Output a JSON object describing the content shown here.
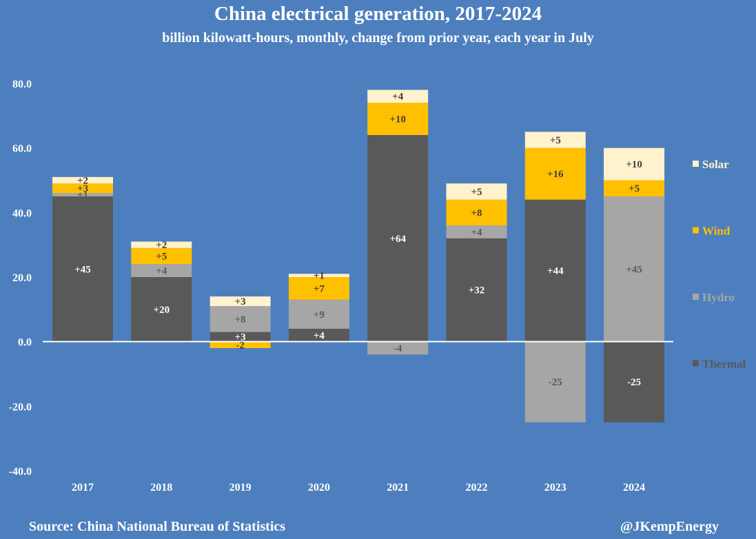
{
  "chart_data": {
    "type": "bar",
    "stacked": true,
    "title": "China electrical generation, 2017-2024",
    "subtitle": "billion kilowatt-hours, monthly, change from prior year, each year in July",
    "categories": [
      "2017",
      "2018",
      "2019",
      "2020",
      "2021",
      "2022",
      "2023",
      "2024"
    ],
    "series": [
      {
        "name": "Thermal",
        "color": "#595959",
        "label_color": "#ffffff",
        "values": [
          45,
          20,
          3,
          4,
          64,
          32,
          44,
          -25
        ],
        "labels": [
          "+45",
          "+20",
          "+3",
          "+4",
          "+64",
          "+32",
          "+44",
          "-25"
        ]
      },
      {
        "name": "Hydro",
        "color": "#a6a6a6",
        "label_color": "#595959",
        "values": [
          1,
          4,
          8,
          9,
          -4,
          4,
          -25,
          45
        ],
        "labels": [
          "+1",
          "+4",
          "+8",
          "+9",
          "-4",
          "+4",
          "-25",
          "+45"
        ]
      },
      {
        "name": "Wind",
        "color": "#ffc000",
        "label_color": "#404040",
        "values": [
          3,
          5,
          -2,
          7,
          10,
          8,
          16,
          5
        ],
        "labels": [
          "+3",
          "+5",
          "-2",
          "+7",
          "+10",
          "+8",
          "+16",
          "+5"
        ]
      },
      {
        "name": "Solar",
        "color": "#fff2cc",
        "label_color": "#404040",
        "values": [
          2,
          2,
          3,
          1,
          4,
          5,
          5,
          10
        ],
        "labels": [
          "+2",
          "+2",
          "+3",
          "+1",
          "+4",
          "+5",
          "+5",
          "+10"
        ]
      }
    ],
    "legend_order": [
      "Solar",
      "Wind",
      "Hydro",
      "Thermal"
    ],
    "legend_position": "right",
    "ylim": [
      -40,
      80
    ],
    "yticks": [
      80,
      60,
      40,
      20,
      0,
      -20,
      -40
    ],
    "ytick_labels": [
      "80.0",
      "60.0",
      "40.0",
      "20.0",
      "0.0",
      "-20.0",
      "-40.0"
    ],
    "xlabel": "",
    "ylabel": "",
    "grid": false
  },
  "footer": {
    "source": "Source: China National Bureau of Statistics",
    "credit": "@JKempEnergy"
  }
}
